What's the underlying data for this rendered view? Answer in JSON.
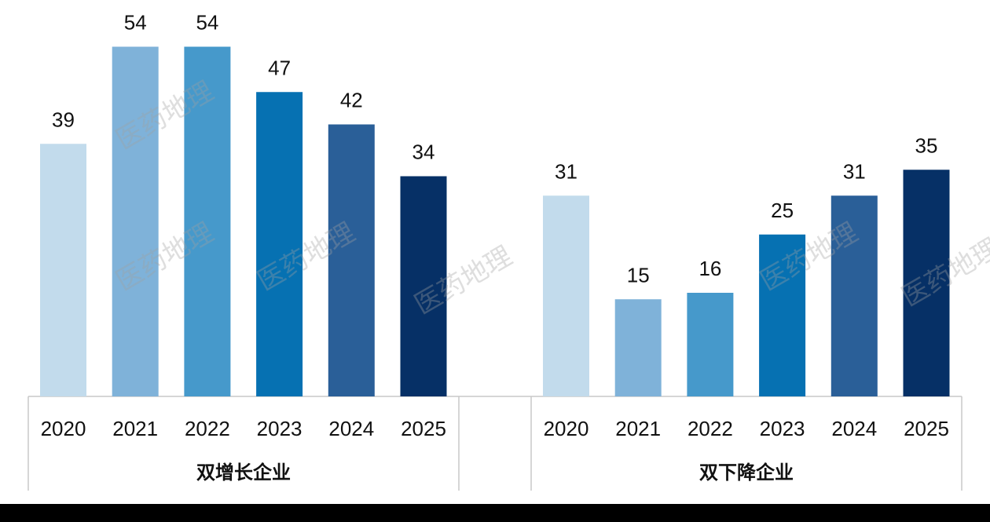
{
  "colors": [
    "#c2dbec",
    "#7fb2d9",
    "#4699cb",
    "#0671b2",
    "#2a5f98",
    "#063066"
  ],
  "watermark_text": "医药地理",
  "chart_data": [
    {
      "type": "bar",
      "group_label": "双增长企业",
      "categories": [
        "2020",
        "2021",
        "2022",
        "2023",
        "2024",
        "2025"
      ],
      "values": [
        39,
        54,
        54,
        47,
        42,
        34
      ],
      "ylim": [
        0,
        60
      ],
      "grid": false,
      "data_labels": true
    },
    {
      "type": "bar",
      "group_label": "双下降企业",
      "categories": [
        "2020",
        "2021",
        "2022",
        "2023",
        "2024",
        "2025"
      ],
      "values": [
        31,
        15,
        16,
        25,
        31,
        35
      ],
      "ylim": [
        0,
        60
      ],
      "grid": false,
      "data_labels": true
    }
  ]
}
